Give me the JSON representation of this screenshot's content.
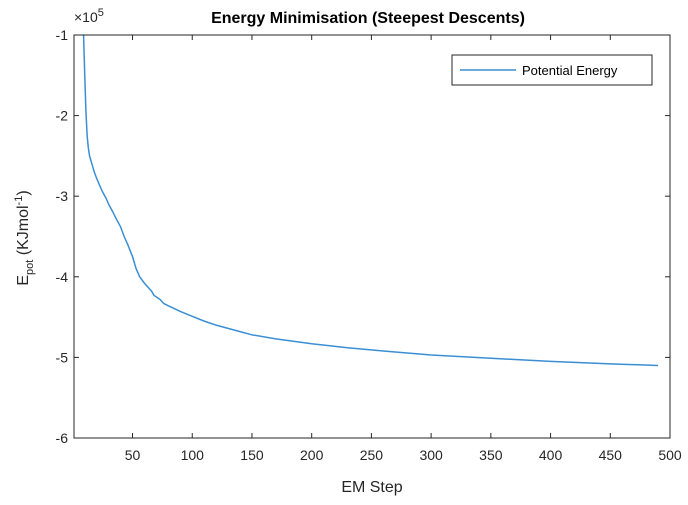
{
  "chart_data": {
    "type": "line",
    "title": "Energy Minimisation (Steepest Descents)",
    "xlabel": "EM Step",
    "ylabel": {
      "main": "E",
      "sub": "pot",
      "rest": " (KJmol",
      "sup": "-1",
      "close": ")"
    },
    "exponent": {
      "base": "×10",
      "power": "5"
    },
    "xlim": [
      1,
      500
    ],
    "ylim": [
      -6,
      -1
    ],
    "xticks": [
      50,
      100,
      150,
      200,
      250,
      300,
      350,
      400,
      450,
      500
    ],
    "yticks": [
      -1,
      -2,
      -3,
      -4,
      -5,
      -6
    ],
    "legend_position": "top-right",
    "series": [
      {
        "name": "Potential Energy",
        "color": "#3a8fd4",
        "x": [
          9,
          10,
          11,
          12,
          13,
          14,
          16,
          18,
          20,
          22,
          25,
          28,
          30,
          33,
          36,
          40,
          43,
          46,
          50,
          53,
          56,
          60,
          63,
          66,
          68,
          70,
          73,
          76,
          80,
          90,
          100,
          110,
          120,
          130,
          140,
          150,
          170,
          200,
          230,
          260,
          300,
          350,
          400,
          450,
          490
        ],
        "y": [
          -1.0,
          -1.5,
          -1.95,
          -2.25,
          -2.4,
          -2.5,
          -2.6,
          -2.7,
          -2.78,
          -2.85,
          -2.95,
          -3.03,
          -3.1,
          -3.18,
          -3.27,
          -3.38,
          -3.5,
          -3.6,
          -3.75,
          -3.9,
          -4.0,
          -4.08,
          -4.13,
          -4.18,
          -4.23,
          -4.25,
          -4.28,
          -4.33,
          -4.36,
          -4.43,
          -4.49,
          -4.55,
          -4.6,
          -4.64,
          -4.68,
          -4.72,
          -4.77,
          -4.83,
          -4.88,
          -4.92,
          -4.97,
          -5.01,
          -5.05,
          -5.08,
          -5.1
        ]
      }
    ]
  }
}
